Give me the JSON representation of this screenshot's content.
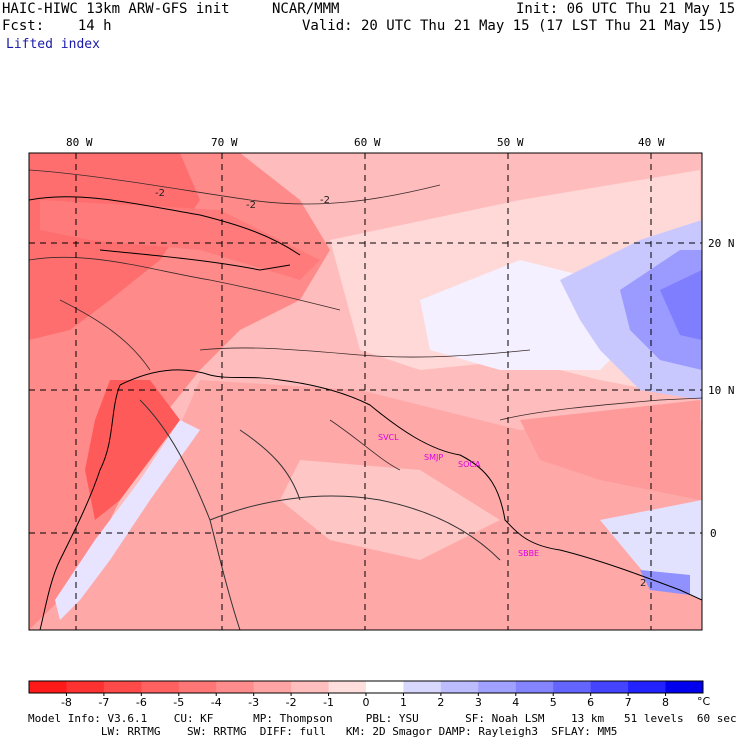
{
  "header": {
    "model": "HAIC-HIWC 13km ARW-GFS init",
    "org": "NCAR/MMM",
    "init": "Init: 06 UTC Thu 21 May 15",
    "fcst": "Fcst:    14 h",
    "valid": "Valid: 20 UTC Thu 21 May 15 (17 LST Thu 21 May 15)",
    "field": "Lifted index"
  },
  "map": {
    "lon_labels": [
      "80 W",
      "70 W",
      "60 W",
      "50 W",
      "40 W"
    ],
    "lat_labels": [
      "20 N",
      "10 N",
      "0"
    ],
    "city_labels": [
      "SVCL",
      "SMJP",
      "SOCA",
      "SBBE"
    ],
    "contour_labels": [
      "-2",
      "-2",
      "-2",
      "2"
    ]
  },
  "colorbar": {
    "ticks": [
      "-8",
      "-7",
      "-6",
      "-5",
      "-4",
      "-3",
      "-2",
      "-1",
      "0",
      "1",
      "2",
      "3",
      "4",
      "5",
      "6",
      "7",
      "8"
    ],
    "unit": "°C",
    "colors": [
      "#ff1a1a",
      "#ff3232",
      "#ff4a4a",
      "#ff6060",
      "#ff7676",
      "#ff8c8c",
      "#ffa4a4",
      "#ffbebe",
      "#ffdede",
      "#ffffff",
      "#d8d8ff",
      "#bcbcff",
      "#a0a0ff",
      "#8484ff",
      "#6464ff",
      "#4444ff",
      "#2222ff",
      "#0000ee"
    ]
  },
  "footer": {
    "line1": "Model Info: V3.6.1    CU: KF      MP: Thompson     PBL: YSU       SF: Noah LSM    13 km   51 levels  60 sec",
    "line2": "           LW: RRTMG    SW: RRTMG  DIFF: full   KM: 2D Smagor DAMP: Rayleigh3  SFLAY: MM5"
  }
}
